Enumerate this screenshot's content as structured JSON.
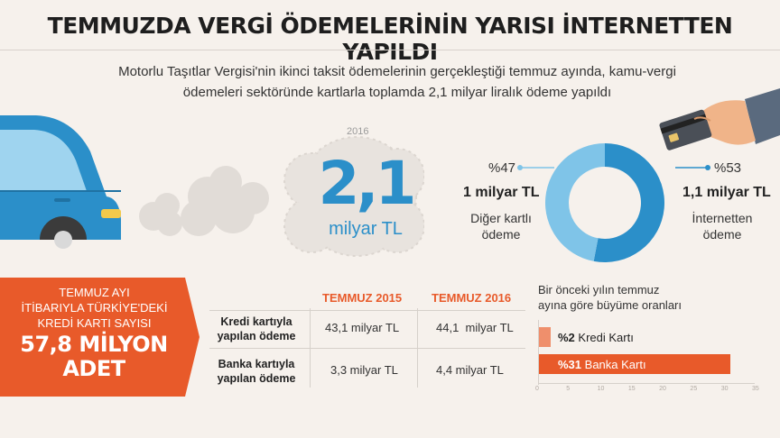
{
  "title": "TEMMUZDA VERGİ ÖDEMELERİNİN YARISI İNTERNETTEN YAPILDI",
  "subtitle": "Motorlu Taşıtlar Vergisi'nin ikinci taksit ödemelerinin gerçekleştiği temmuz ayında, kamu-vergi ödemeleri sektöründe kartlarla toplamda 2,1 milyar liralık ödeme yapıldı",
  "total": {
    "year": "2016",
    "value": "2,1",
    "unit": "milyar TL"
  },
  "colors": {
    "blue": "#2b8fc9",
    "light_blue": "#7fc4e8",
    "orange": "#e85a2a",
    "background": "#f6f1ec"
  },
  "donut": {
    "left": {
      "percent": "%47",
      "amount": "1 milyar TL",
      "label_line1": "Diğer kartlı",
      "label_line2": "ödeme",
      "value": 47
    },
    "right": {
      "percent": "%53",
      "amount": "1,1 milyar TL",
      "label_line1": "İnternetten",
      "label_line2": "ödeme",
      "value": 53
    }
  },
  "card_count": {
    "line1": "TEMMUZ AYI",
    "line2": "İTİBARIYLA TÜRKİYE'DEKİ",
    "line3": "KREDİ KARTI SAYISI",
    "big1": "57,8 MİLYON",
    "big2": "ADET"
  },
  "table": {
    "headers": [
      "TEMMUZ 2015",
      "TEMMUZ 2016"
    ],
    "rows": [
      {
        "label1": "Kredi kartıyla",
        "label2": "yapılan ödeme",
        "v2015": "43,1 milyar TL",
        "v2016": "44,1  milyar TL"
      },
      {
        "label1": "Banka kartıyla",
        "label2": "yapılan ödeme",
        "v2015": "3,3 milyar TL",
        "v2016": "4,4 milyar TL"
      }
    ]
  },
  "growth": {
    "title_line1": "Bir önceki yılın temmuz",
    "title_line2": "ayına göre büyüme oranları",
    "bars": [
      {
        "pct": "%2",
        "label": "Kredi Kartı",
        "value": 2
      },
      {
        "pct": "%31",
        "label": "Banka Kartı",
        "value": 31
      }
    ],
    "ticks": [
      "0",
      "5",
      "10",
      "15",
      "20",
      "25",
      "30",
      "35"
    ],
    "max": 35
  },
  "icons": [
    "car-icon",
    "smoke-cloud-icon",
    "hand-card-icon",
    "donut-chart-icon"
  ]
}
